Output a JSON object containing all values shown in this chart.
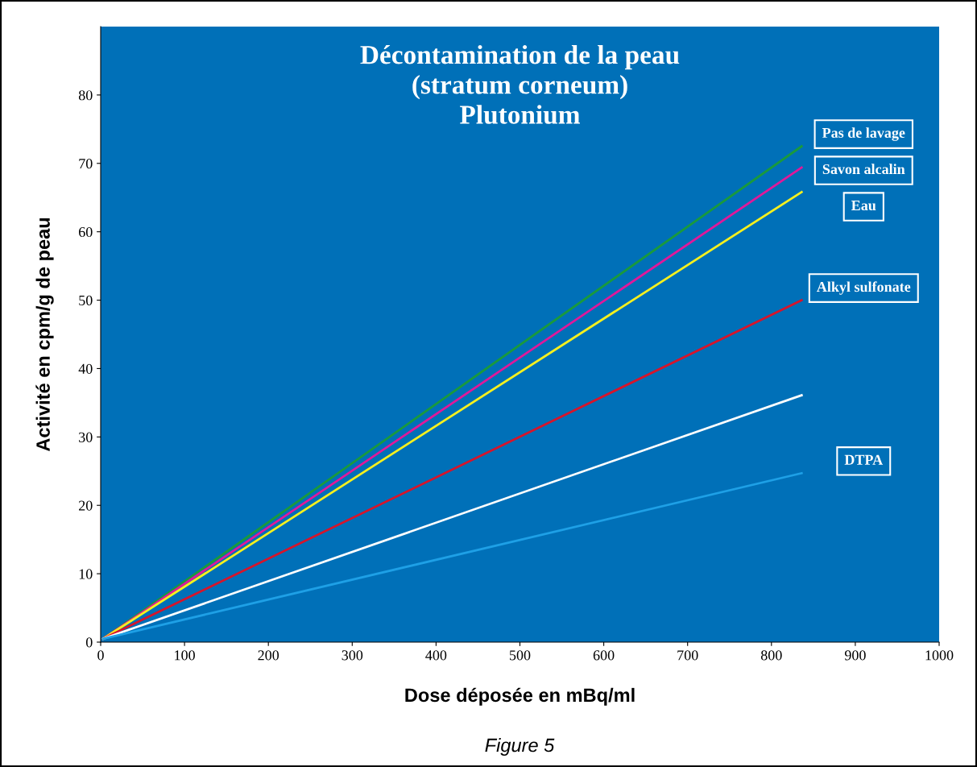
{
  "chart_data": {
    "type": "line",
    "title": "Décontamination de la peau\n(stratum corneum)\nPlutonium",
    "xlabel": "Dose déposée en mBq/ml",
    "ylabel": "Activité en cpm/g de peau",
    "annotations": [
      "Figure 5"
    ],
    "x": [
      3,
      836
    ],
    "xlim": [
      0,
      1000
    ],
    "ylim": [
      0,
      90
    ],
    "xticks": [
      0,
      100,
      200,
      300,
      400,
      500,
      600,
      700,
      800,
      900,
      1000
    ],
    "yticks": [
      0,
      10,
      20,
      30,
      40,
      50,
      60,
      70,
      80
    ],
    "grid": false,
    "legend": false,
    "marker": "none",
    "line_style": "solid",
    "series": [
      {
        "name": "Pas de lavage",
        "color": "#1a9a3c",
        "values": [
          0.5,
          72.5
        ]
      },
      {
        "name": "Savon alcalin",
        "color": "#e0189a",
        "values": [
          0.5,
          69.4
        ]
      },
      {
        "name": "Eau",
        "color": "#f5f01e",
        "values": [
          0.5,
          65.8
        ]
      },
      {
        "name": "Alkyl sulfonate",
        "color": "#d8142a",
        "values": [
          0.5,
          50
        ]
      },
      {
        "color": "#ffffff",
        "values": [
          0.5,
          36.1
        ]
      },
      {
        "name": "DTPA",
        "color": "#1ea0e6",
        "values": [
          0.5,
          24.7
        ]
      }
    ]
  }
}
